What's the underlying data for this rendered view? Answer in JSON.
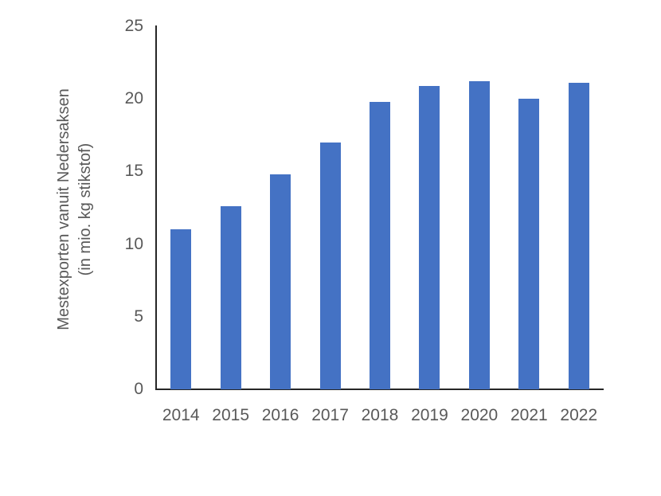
{
  "chart_data": {
    "type": "bar",
    "title": "",
    "categories": [
      "2014",
      "2015",
      "2016",
      "2017",
      "2018",
      "2019",
      "2020",
      "2021",
      "2022"
    ],
    "values": [
      11.0,
      12.6,
      14.8,
      17.0,
      19.8,
      20.9,
      21.2,
      20.0,
      21.1
    ],
    "xlabel": "",
    "ylabel": "Mestexporten vanuit Nedersaksen (in mio. kg stikstof)",
    "ylabel_lines": [
      "Mestexporten vanuit Nedersaksen",
      "(in mio. kg stikstof)"
    ],
    "ylim": [
      0,
      25
    ],
    "yticks": [
      0,
      5,
      10,
      15,
      20,
      25
    ],
    "grid": false,
    "legend": "none",
    "bar_color": "#4472C4",
    "axis_color": "#262626",
    "text_color": "#595959"
  }
}
